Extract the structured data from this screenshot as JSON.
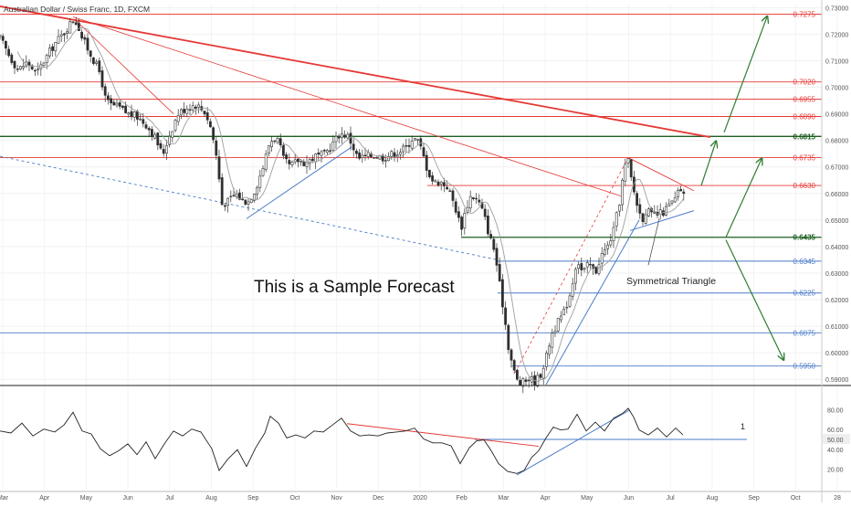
{
  "header": {
    "title": "Australian Dollar / Swiss Franc, 1D, FXCM"
  },
  "annotations": {
    "sample_text": "This is a Sample Forecast",
    "triangle_label": "Symmetrical Triangle",
    "rsi_marker": "1"
  },
  "colors": {
    "red_level": "#e53935",
    "green_level": "#1b5e20",
    "blue_level": "#4a7bc8",
    "candle_up": "#2e2e2e",
    "candle_down": "#2e2e2e",
    "ma_line": "#9e9e9e",
    "trend_red": "#e53935",
    "arrow_green": "#2e7d32"
  },
  "chart_data": {
    "type": "candlestick",
    "symbol": "AUDCHF",
    "timeframe": "1D",
    "price_axis": {
      "ylim": [
        0.588,
        0.7315
      ],
      "ticks": [
        "0.73000",
        "0.72000",
        "0.71000",
        "0.70000",
        "0.69000",
        "0.68000",
        "0.67000",
        "0.66000",
        "0.65000",
        "0.64000",
        "0.63000",
        "0.62000",
        "0.61000",
        "0.60000",
        "0.59000"
      ]
    },
    "time_axis": {
      "ticks": [
        "Mar",
        "Apr",
        "May",
        "Jun",
        "Jul",
        "Aug",
        "Sep",
        "Oct",
        "Nov",
        "Dec",
        "2020",
        "Feb",
        "Mar",
        "Apr",
        "May",
        "Jun",
        "Jul",
        "Aug",
        "Sep",
        "Oct",
        "28"
      ]
    },
    "levels": [
      {
        "label": "0.7275",
        "value": 0.7275,
        "color": "red"
      },
      {
        "label": "0.7020",
        "value": 0.702,
        "color": "red"
      },
      {
        "label": "0.6955",
        "value": 0.6955,
        "color": "red"
      },
      {
        "label": "0.6890",
        "value": 0.689,
        "color": "red"
      },
      {
        "label": "0.6815",
        "value": 0.6815,
        "color": "green"
      },
      {
        "label": "0.6735",
        "value": 0.6735,
        "color": "red"
      },
      {
        "label": "0.6630",
        "value": 0.663,
        "color": "red"
      },
      {
        "label": "0.6435",
        "value": 0.6435,
        "color": "green"
      },
      {
        "label": "0.6345",
        "value": 0.6345,
        "color": "blue"
      },
      {
        "label": "0.6225",
        "value": 0.6225,
        "color": "blue"
      },
      {
        "label": "0.6075",
        "value": 0.6075,
        "color": "blue"
      },
      {
        "label": "0.5950",
        "value": 0.595,
        "color": "blue"
      }
    ],
    "close_path": [
      [
        0,
        0.7185
      ],
      [
        10,
        0.712
      ],
      [
        20,
        0.7065
      ],
      [
        30,
        0.7095
      ],
      [
        40,
        0.705
      ],
      [
        50,
        0.711
      ],
      [
        60,
        0.7165
      ],
      [
        70,
        0.7205
      ],
      [
        80,
        0.7255
      ],
      [
        85,
        0.724
      ],
      [
        90,
        0.7185
      ],
      [
        100,
        0.712
      ],
      [
        110,
        0.705
      ],
      [
        115,
        0.696
      ],
      [
        120,
        0.6935
      ],
      [
        130,
        0.6925
      ],
      [
        140,
        0.69
      ],
      [
        150,
        0.689
      ],
      [
        160,
        0.686
      ],
      [
        170,
        0.681
      ],
      [
        178,
        0.6745
      ],
      [
        185,
        0.6815
      ],
      [
        195,
        0.69
      ],
      [
        205,
        0.6925
      ],
      [
        215,
        0.6935
      ],
      [
        225,
        0.6905
      ],
      [
        232,
        0.6835
      ],
      [
        238,
        0.672
      ],
      [
        243,
        0.656
      ],
      [
        250,
        0.657
      ],
      [
        258,
        0.66
      ],
      [
        265,
        0.6575
      ],
      [
        272,
        0.657
      ],
      [
        280,
        0.662
      ],
      [
        288,
        0.67
      ],
      [
        295,
        0.679
      ],
      [
        300,
        0.681
      ],
      [
        305,
        0.68
      ],
      [
        310,
        0.673
      ],
      [
        318,
        0.67
      ],
      [
        326,
        0.6725
      ],
      [
        335,
        0.6715
      ],
      [
        345,
        0.674
      ],
      [
        355,
        0.6745
      ],
      [
        365,
        0.679
      ],
      [
        372,
        0.6825
      ],
      [
        380,
        0.682
      ],
      [
        385,
        0.679
      ],
      [
        392,
        0.673
      ],
      [
        400,
        0.674
      ],
      [
        410,
        0.6745
      ],
      [
        420,
        0.6735
      ],
      [
        430,
        0.675
      ],
      [
        438,
        0.676
      ],
      [
        445,
        0.6775
      ],
      [
        452,
        0.681
      ],
      [
        458,
        0.6795
      ],
      [
        462,
        0.676
      ],
      [
        468,
        0.669
      ],
      [
        475,
        0.664
      ],
      [
        482,
        0.6645
      ],
      [
        490,
        0.6625
      ],
      [
        498,
        0.6555
      ],
      [
        505,
        0.647
      ],
      [
        510,
        0.654
      ],
      [
        516,
        0.6595
      ],
      [
        524,
        0.657
      ],
      [
        530,
        0.652
      ],
      [
        536,
        0.644
      ],
      [
        542,
        0.638
      ],
      [
        547,
        0.626
      ],
      [
        552,
        0.615
      ],
      [
        557,
        0.602
      ],
      [
        562,
        0.594
      ],
      [
        568,
        0.588
      ],
      [
        574,
        0.589
      ],
      [
        580,
        0.5905
      ],
      [
        586,
        0.589
      ],
      [
        592,
        0.592
      ],
      [
        598,
        0.598
      ],
      [
        604,
        0.607
      ],
      [
        612,
        0.612
      ],
      [
        618,
        0.6155
      ],
      [
        625,
        0.623
      ],
      [
        632,
        0.6355
      ],
      [
        638,
        0.63
      ],
      [
        645,
        0.6335
      ],
      [
        652,
        0.63
      ],
      [
        658,
        0.6365
      ],
      [
        665,
        0.6395
      ],
      [
        672,
        0.646
      ],
      [
        678,
        0.656
      ],
      [
        684,
        0.67
      ],
      [
        688,
        0.672
      ],
      [
        692,
        0.664
      ],
      [
        698,
        0.6555
      ],
      [
        703,
        0.65
      ],
      [
        708,
        0.654
      ],
      [
        714,
        0.6515
      ],
      [
        720,
        0.652
      ],
      [
        727,
        0.653
      ],
      [
        733,
        0.6555
      ],
      [
        739,
        0.6575
      ],
      [
        745,
        0.662
      ],
      [
        750,
        0.658
      ]
    ],
    "rsi": {
      "ylim": [
        0,
        100
      ],
      "ticks": [
        "80.00",
        "60.00",
        "50.00",
        "40.00",
        "20.00"
      ],
      "current_value": "50.00",
      "path": [
        [
          0,
          60
        ],
        [
          12,
          55
        ],
        [
          24,
          68
        ],
        [
          36,
          52
        ],
        [
          48,
          62
        ],
        [
          60,
          56
        ],
        [
          70,
          66
        ],
        [
          80,
          76
        ],
        [
          90,
          60
        ],
        [
          100,
          54
        ],
        [
          110,
          42
        ],
        [
          120,
          32
        ],
        [
          130,
          40
        ],
        [
          140,
          44
        ],
        [
          150,
          36
        ],
        [
          160,
          46
        ],
        [
          170,
          32
        ],
        [
          180,
          44
        ],
        [
          190,
          60
        ],
        [
          200,
          52
        ],
        [
          210,
          62
        ],
        [
          220,
          56
        ],
        [
          232,
          42
        ],
        [
          240,
          17
        ],
        [
          250,
          32
        ],
        [
          260,
          38
        ],
        [
          270,
          24
        ],
        [
          280,
          40
        ],
        [
          290,
          58
        ],
        [
          296,
          72
        ],
        [
          305,
          68
        ],
        [
          314,
          50
        ],
        [
          324,
          56
        ],
        [
          334,
          50
        ],
        [
          344,
          60
        ],
        [
          354,
          56
        ],
        [
          364,
          66
        ],
        [
          374,
          70
        ],
        [
          384,
          60
        ],
        [
          394,
          52
        ],
        [
          404,
          56
        ],
        [
          414,
          52
        ],
        [
          424,
          58
        ],
        [
          434,
          56
        ],
        [
          444,
          60
        ],
        [
          454,
          60
        ],
        [
          464,
          52
        ],
        [
          474,
          45
        ],
        [
          484,
          48
        ],
        [
          494,
          42
        ],
        [
          504,
          27
        ],
        [
          514,
          40
        ],
        [
          522,
          50
        ],
        [
          530,
          48
        ],
        [
          538,
          40
        ],
        [
          546,
          24
        ],
        [
          556,
          19
        ],
        [
          566,
          14
        ],
        [
          574,
          20
        ],
        [
          582,
          30
        ],
        [
          590,
          40
        ],
        [
          598,
          50
        ],
        [
          606,
          64
        ],
        [
          614,
          58
        ],
        [
          622,
          62
        ],
        [
          632,
          74
        ],
        [
          642,
          60
        ],
        [
          652,
          66
        ],
        [
          662,
          60
        ],
        [
          672,
          70
        ],
        [
          682,
          78
        ],
        [
          688,
          80
        ],
        [
          694,
          74
        ],
        [
          700,
          58
        ],
        [
          710,
          56
        ],
        [
          720,
          60
        ],
        [
          730,
          54
        ],
        [
          740,
          60
        ],
        [
          748,
          56
        ]
      ]
    }
  }
}
